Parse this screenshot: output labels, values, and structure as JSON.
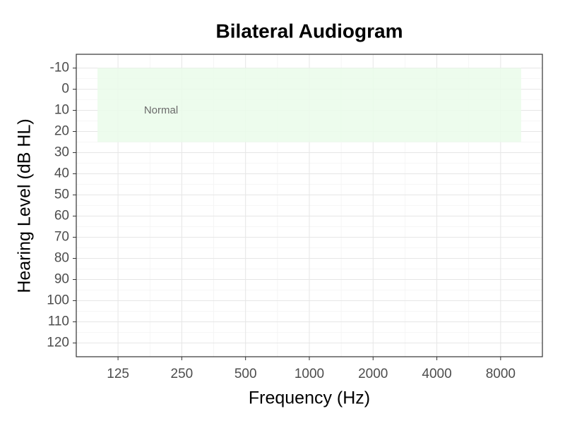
{
  "chart_data": {
    "type": "audiogram",
    "title": "Bilateral Audiogram",
    "x_label": "Frequency (Hz)",
    "y_label": "Hearing Level (dB HL)",
    "xscale": "log",
    "xlim": [
      79.4,
      12600
    ],
    "xticks": [
      125,
      250,
      500,
      1000,
      2000,
      4000,
      8000
    ],
    "ylim": [
      126.5,
      -16.5
    ],
    "yticks": [
      -10,
      0,
      10,
      20,
      30,
      40,
      50,
      60,
      70,
      80,
      90,
      100,
      110,
      120
    ],
    "grid": true,
    "minor_grid": true,
    "regions": [
      {
        "label": "Normal",
        "x": [
          100,
          10000
        ],
        "y": [
          -10,
          25
        ],
        "color": "#eafbea"
      }
    ],
    "series": []
  }
}
